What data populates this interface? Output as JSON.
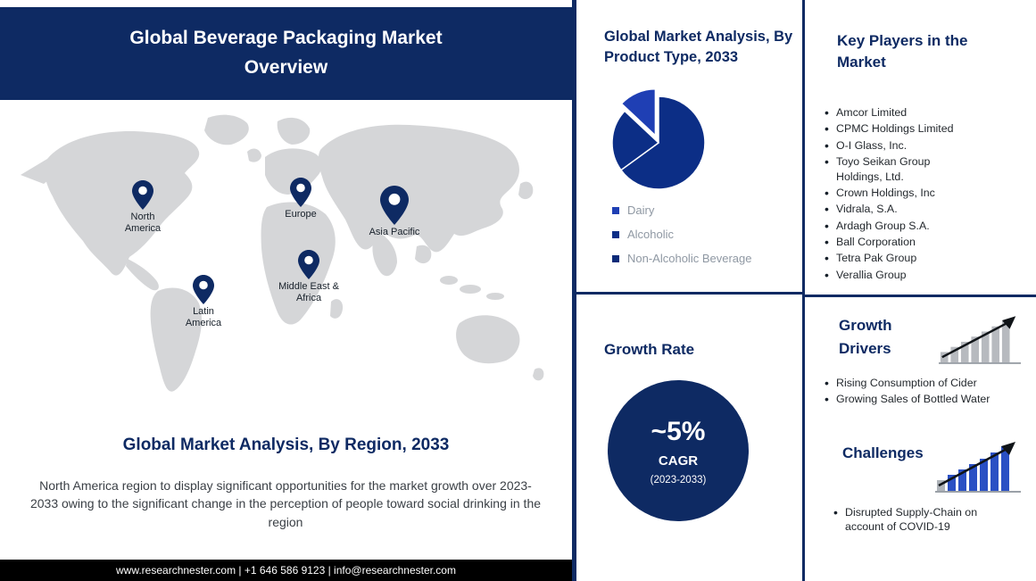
{
  "banner": {
    "title": "Global Beverage Packaging Market Overview"
  },
  "map": {
    "pins": [
      {
        "label": "North America"
      },
      {
        "label": "Europe"
      },
      {
        "label": "Asia Pacific"
      },
      {
        "label": "Middle East & Africa"
      },
      {
        "label": "Latin America"
      }
    ]
  },
  "region_analysis": {
    "heading": "Global Market Analysis, By Region, 2033",
    "body": "North America region to display significant opportunities for the market growth over 2023-2033 owing to the significant change in the perception of people toward social drinking in the region"
  },
  "footer": {
    "text": "www.researchnester.com | +1 646 586 9123 | info@researchnester.com"
  },
  "product_type": {
    "heading": "Global Market Analysis, By Product Type, 2033"
  },
  "chart_data": {
    "type": "pie",
    "title": "Global Market Analysis, By Product Type, 2033",
    "labels": [
      "Dairy",
      "Alcoholic",
      "Non-Alcoholic Beverage"
    ],
    "values": [
      13,
      22,
      65
    ],
    "slices": [
      {
        "label": "Non-Alcoholic Beverage",
        "value": 65,
        "color": "#0c2e86",
        "exploded": false
      },
      {
        "label": "Alcoholic",
        "value": 22,
        "color": "#0c2e86",
        "exploded": false
      },
      {
        "label": "Dairy",
        "value": 13,
        "color": "#1f3fb4",
        "exploded": true
      }
    ],
    "legend": [
      {
        "label": "Dairy",
        "color": "#1f3fb4"
      },
      {
        "label": "Alcoholic",
        "color": "#0c2e86"
      },
      {
        "label": "Non-Alcoholic Beverage",
        "color": "#0a2a78"
      }
    ],
    "legend_position": "bottom-left"
  },
  "growth_rate": {
    "heading": "Growth Rate",
    "value": "~5%",
    "metric": "CAGR",
    "period": "(2023-2033)"
  },
  "key_players": {
    "heading": "Key Players in the Market",
    "items": [
      "Amcor Limited",
      "CPMC Holdings Limited",
      "O-I Glass, Inc.",
      "Toyo Seikan Group Holdings, Ltd.",
      "Crown Holdings, Inc",
      "Vidrala, S.A.",
      "Ardagh Group S.A.",
      "Ball Corporation",
      "Tetra Pak Group",
      "Verallia Group"
    ]
  },
  "growth_drivers": {
    "heading": "Growth Drivers",
    "items": [
      "Rising Consumption of Cider",
      "Growing Sales of Bottled Water"
    ]
  },
  "challenges": {
    "heading": "Challenges",
    "items": [
      "Disrupted Supply-Chain on account of COVID-19"
    ]
  },
  "colors": {
    "navy": "#0e2a63",
    "pie_main": "#0c2e86",
    "pie_accent": "#1f3fb4",
    "map_gray": "#d5d6d8",
    "legend_text": "#8f98a3",
    "footer_bg": "#000000"
  }
}
